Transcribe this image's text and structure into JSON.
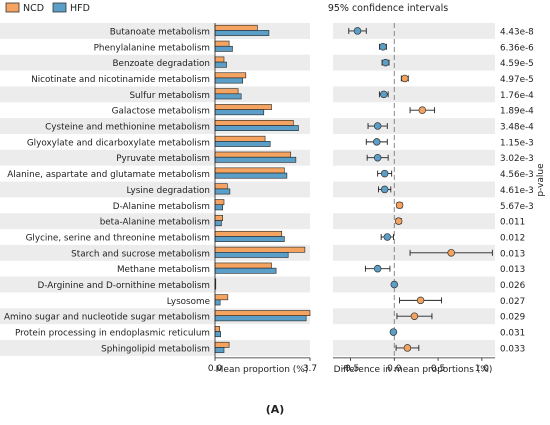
{
  "legend": {
    "items": [
      {
        "label": "NCD",
        "color": "#f4a460"
      },
      {
        "label": "HFD",
        "color": "#5b9fc9"
      }
    ]
  },
  "right_title": "95% confidence intervals",
  "pvalue_axis_label": "p-value",
  "figure_label": "(A)",
  "chart_data": [
    {
      "type": "bar",
      "orientation": "horizontal",
      "xlabel": "Mean proportion (%)",
      "xticks": [
        "0.0",
        "3.7"
      ],
      "xlim": [
        0,
        3.7
      ],
      "categories": [
        "Butanoate metabolism",
        "Phenylalanine metabolism",
        "Benzoate degradation",
        "Nicotinate and nicotinamide metabolism",
        "Sulfur metabolism",
        "Galactose metabolism",
        "Cysteine and methionine metabolism",
        "Glyoxylate and dicarboxylate metabolism",
        "Pyruvate metabolism",
        "Alanine, aspartate and glutamate metabolism",
        "Lysine degradation",
        "D-Alanine metabolism",
        "beta-Alanine metabolism",
        "Glycine, serine and threonine metabolism",
        "Starch and sucrose metabolism",
        "Methane metabolism",
        "D-Arginine and D-ornithine metabolism",
        "Lysosome",
        "Amino sugar and nucleotide sugar metabolism",
        "Protein processing in endoplasmic reticulum",
        "Sphingolipid metabolism"
      ],
      "series": [
        {
          "name": "NCD",
          "color": "#f4a460",
          "values": [
            1.65,
            0.55,
            0.35,
            1.2,
            0.9,
            2.2,
            3.05,
            1.95,
            2.95,
            2.7,
            0.48,
            0.35,
            0.3,
            2.6,
            3.5,
            2.2,
            0.02,
            0.5,
            3.7,
            0.18,
            0.55
          ]
        },
        {
          "name": "HFD",
          "color": "#5b9fc9",
          "values": [
            2.1,
            0.68,
            0.45,
            1.08,
            1.02,
            1.9,
            3.25,
            2.15,
            3.15,
            2.8,
            0.58,
            0.3,
            0.25,
            2.7,
            2.85,
            2.38,
            0.02,
            0.2,
            3.55,
            0.22,
            0.35
          ]
        }
      ]
    },
    {
      "type": "scatter",
      "title": "95% confidence intervals",
      "xlabel": "Difference in mean proportions (%)",
      "xticks": [
        "-0.5",
        "0.0",
        "0.5",
        "1.0"
      ],
      "xlim": [
        -0.7,
        1.15
      ],
      "points": [
        {
          "est": -0.42,
          "lo": -0.52,
          "hi": -0.32,
          "group": "HFD"
        },
        {
          "est": -0.13,
          "lo": -0.17,
          "hi": -0.09,
          "group": "HFD"
        },
        {
          "est": -0.1,
          "lo": -0.14,
          "hi": -0.06,
          "group": "HFD"
        },
        {
          "est": 0.12,
          "lo": 0.08,
          "hi": 0.16,
          "group": "NCD"
        },
        {
          "est": -0.12,
          "lo": -0.17,
          "hi": -0.07,
          "group": "HFD"
        },
        {
          "est": 0.32,
          "lo": 0.18,
          "hi": 0.46,
          "group": "NCD"
        },
        {
          "est": -0.19,
          "lo": -0.3,
          "hi": -0.08,
          "group": "HFD"
        },
        {
          "est": -0.2,
          "lo": -0.32,
          "hi": -0.08,
          "group": "HFD"
        },
        {
          "est": -0.19,
          "lo": -0.31,
          "hi": -0.07,
          "group": "HFD"
        },
        {
          "est": -0.11,
          "lo": -0.19,
          "hi": -0.03,
          "group": "HFD"
        },
        {
          "est": -0.11,
          "lo": -0.18,
          "hi": -0.04,
          "group": "HFD"
        },
        {
          "est": 0.06,
          "lo": 0.03,
          "hi": 0.09,
          "group": "NCD"
        },
        {
          "est": 0.05,
          "lo": 0.02,
          "hi": 0.08,
          "group": "NCD"
        },
        {
          "est": -0.08,
          "lo": -0.15,
          "hi": -0.01,
          "group": "HFD"
        },
        {
          "est": 0.65,
          "lo": 0.18,
          "hi": 1.12,
          "group": "NCD"
        },
        {
          "est": -0.19,
          "lo": -0.33,
          "hi": -0.05,
          "group": "HFD"
        },
        {
          "est": 0.0,
          "lo": -0.01,
          "hi": 0.01,
          "group": "HFD"
        },
        {
          "est": 0.3,
          "lo": 0.06,
          "hi": 0.54,
          "group": "NCD"
        },
        {
          "est": 0.23,
          "lo": 0.03,
          "hi": 0.43,
          "group": "NCD"
        },
        {
          "est": -0.01,
          "lo": -0.02,
          "hi": 0.0,
          "group": "HFD"
        },
        {
          "est": 0.15,
          "lo": 0.02,
          "hi": 0.28,
          "group": "NCD"
        }
      ],
      "pvalues": [
        "4.43e-8",
        "6.36e-6",
        "4.59e-5",
        "4.97e-5",
        "1.76e-4",
        "1.89e-4",
        "3.48e-4",
        "1.15e-3",
        "3.02e-3",
        "4.56e-3",
        "4.61e-3",
        "5.67e-3",
        "0.011",
        "0.012",
        "0.013",
        "0.013",
        "0.026",
        "0.027",
        "0.029",
        "0.031",
        "0.033"
      ]
    }
  ]
}
